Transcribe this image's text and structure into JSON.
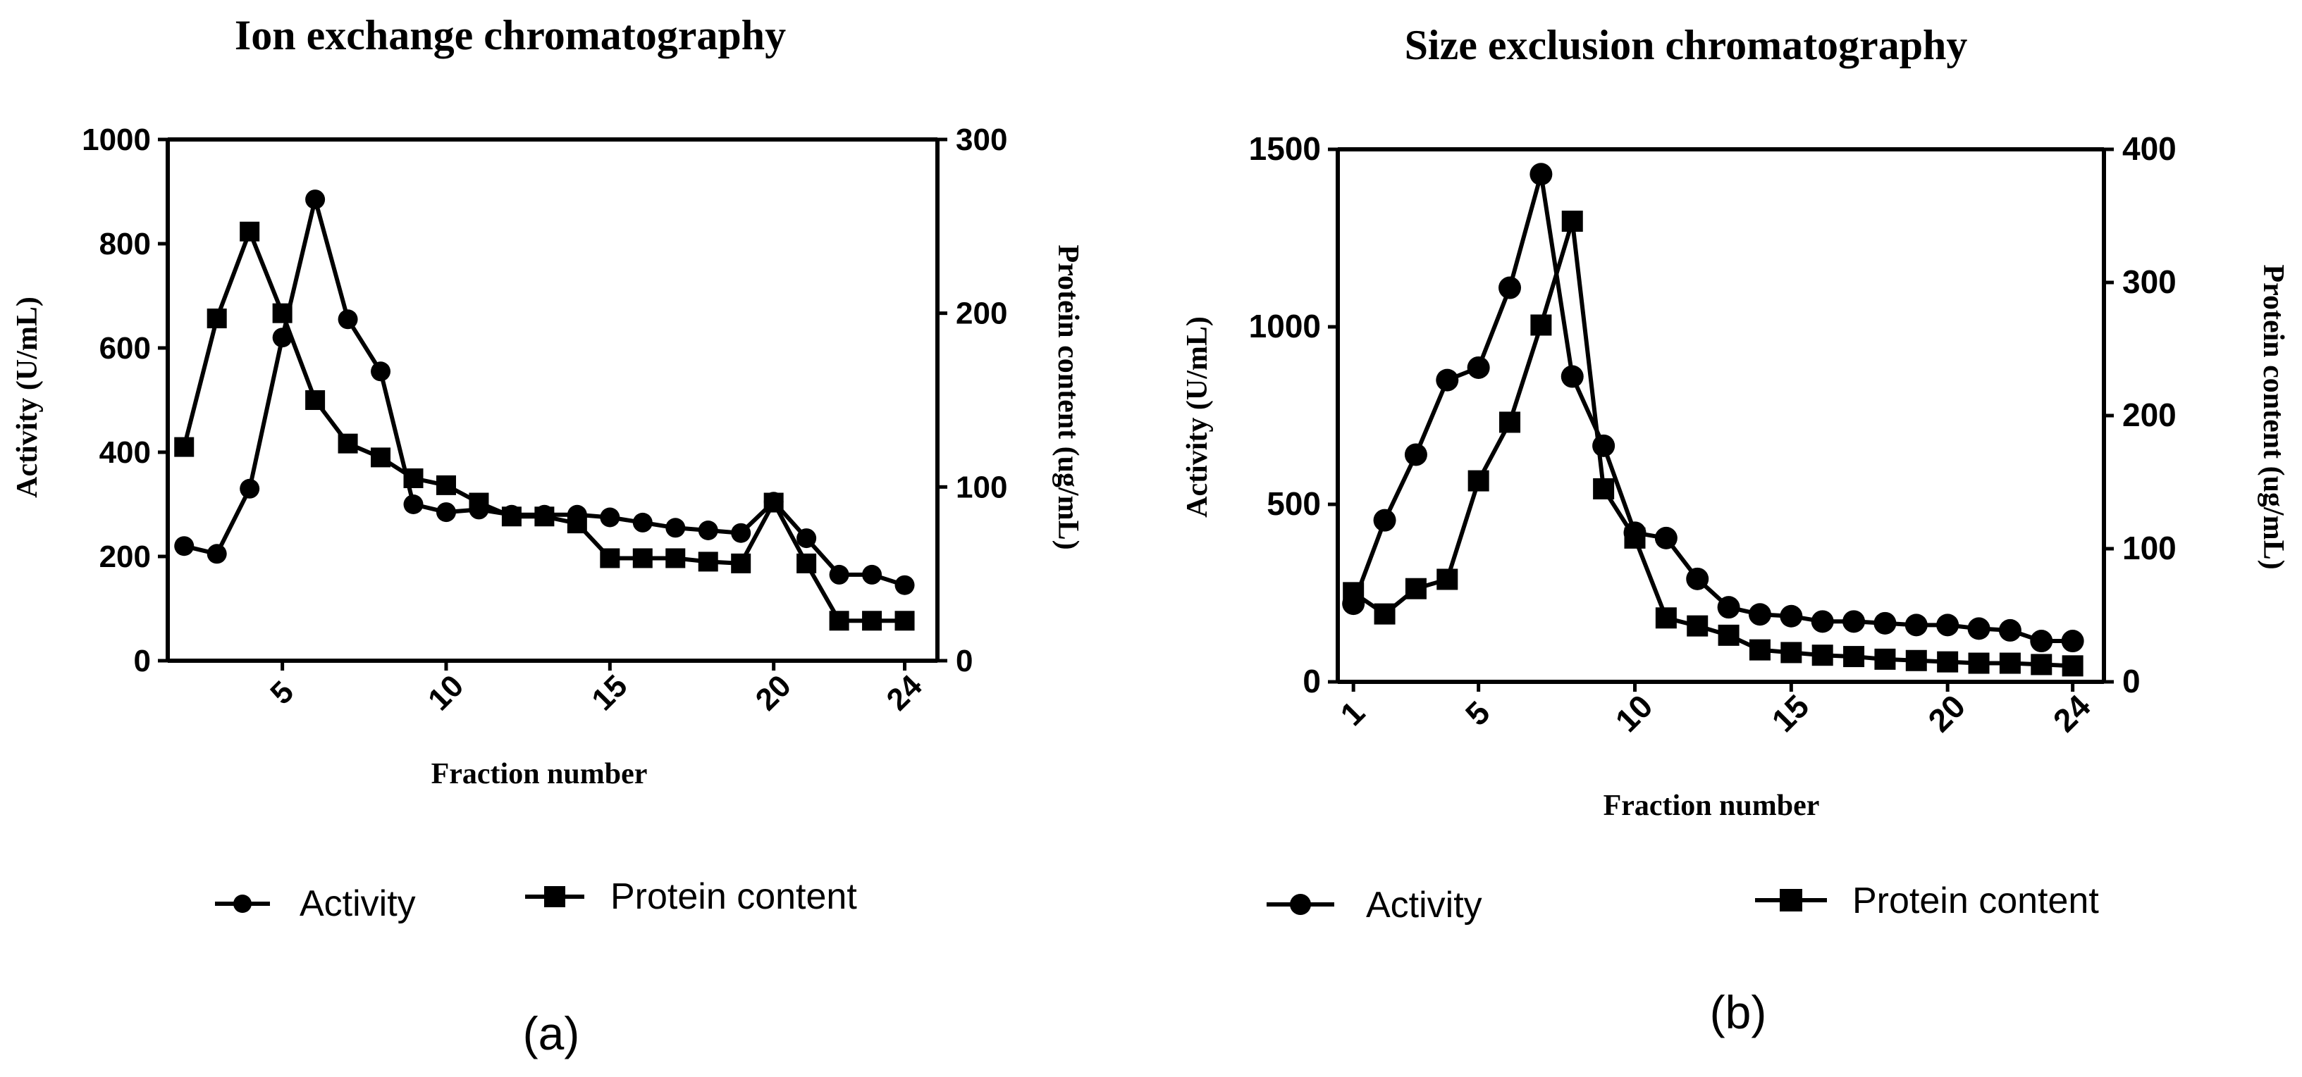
{
  "chart_data": [
    {
      "type": "line",
      "title": "Ion exchange chromatography",
      "xlabel": "Fraction number",
      "ylabel": "Activity (U/mL)",
      "ylabel_right": "Protein content (ug/mL)",
      "panel_label": "(a)",
      "x_ticks": [
        "5",
        "10",
        "15",
        "20",
        "24"
      ],
      "y_ticks": [
        "0",
        "200",
        "400",
        "600",
        "800",
        "1000"
      ],
      "y2_ticks": [
        "0",
        "100",
        "200",
        "300"
      ],
      "xlim": [
        1.5,
        25
      ],
      "ylim": [
        0,
        1000
      ],
      "y2lim": [
        0,
        300
      ],
      "legend": [
        "Activity",
        "Protein content"
      ],
      "series": [
        {
          "name": "Activity",
          "axis": "left",
          "marker": "circle",
          "x": [
            2,
            3,
            4,
            5,
            6,
            7,
            8,
            9,
            10,
            11,
            12,
            13,
            14,
            15,
            16,
            17,
            18,
            19,
            20,
            21,
            22,
            23,
            24
          ],
          "values": [
            220,
            205,
            330,
            620,
            885,
            655,
            555,
            300,
            285,
            290,
            280,
            280,
            280,
            275,
            265,
            255,
            250,
            245,
            305,
            235,
            165,
            165,
            145
          ]
        },
        {
          "name": "Protein content",
          "axis": "right",
          "marker": "square",
          "x": [
            2,
            3,
            4,
            5,
            6,
            7,
            8,
            9,
            10,
            11,
            12,
            13,
            14,
            15,
            16,
            17,
            18,
            19,
            20,
            21,
            22,
            23,
            24
          ],
          "values": [
            123,
            197,
            247,
            200,
            150,
            125,
            117,
            105,
            101,
            91,
            83,
            83,
            79,
            59,
            59,
            59,
            57,
            56,
            91,
            56,
            23,
            23,
            23
          ]
        }
      ]
    },
    {
      "type": "line",
      "title": "Size exclusion chromatography",
      "xlabel": "Fraction number",
      "ylabel": "Activity (U/mL)",
      "ylabel_right": "Protein content (ug/mL)",
      "panel_label": "(b)",
      "x_ticks": [
        "1",
        "5",
        "10",
        "15",
        "20",
        "24"
      ],
      "y_ticks": [
        "0",
        "500",
        "1000",
        "1500"
      ],
      "y2_ticks": [
        "0",
        "100",
        "200",
        "300",
        "400"
      ],
      "xlim": [
        0.5,
        25
      ],
      "ylim": [
        0,
        1500
      ],
      "y2lim": [
        0,
        400
      ],
      "legend": [
        "Activity",
        "Protein content"
      ],
      "series": [
        {
          "name": "Activity",
          "axis": "left",
          "marker": "circle",
          "x": [
            1,
            2,
            3,
            4,
            5,
            6,
            7,
            8,
            9,
            10,
            11,
            12,
            13,
            14,
            15,
            16,
            17,
            18,
            19,
            20,
            21,
            22,
            23,
            24
          ],
          "values": [
            220,
            455,
            640,
            850,
            885,
            1110,
            1430,
            860,
            665,
            420,
            405,
            290,
            210,
            190,
            185,
            170,
            170,
            165,
            160,
            160,
            150,
            145,
            115,
            115
          ]
        },
        {
          "name": "Protein content",
          "axis": "right",
          "marker": "square",
          "x": [
            1,
            2,
            3,
            4,
            5,
            6,
            7,
            8,
            9,
            10,
            11,
            12,
            13,
            14,
            15,
            16,
            17,
            18,
            19,
            20,
            21,
            22,
            23,
            24
          ],
          "values": [
            67,
            51,
            70,
            77,
            151,
            195,
            268,
            346,
            145,
            108,
            48,
            42,
            35,
            24,
            22,
            20,
            19,
            17,
            16,
            15,
            14,
            14,
            13,
            12
          ]
        }
      ]
    }
  ]
}
